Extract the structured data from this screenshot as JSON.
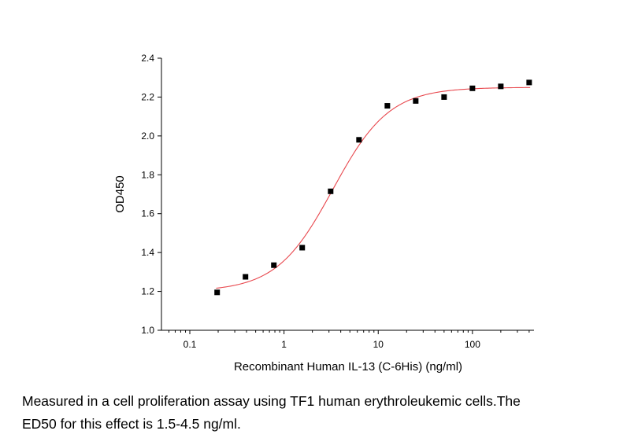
{
  "chart_data": {
    "type": "scatter",
    "x_scale": "log",
    "xlabel": "Recombinant Human IL-13 (C-6His) (ng/ml)",
    "ylabel": "OD450",
    "xlim": [
      0.05,
      450
    ],
    "ylim": [
      1.0,
      2.4
    ],
    "x_ticks": [
      "0.1",
      "1",
      "10",
      "100"
    ],
    "y_ticks": [
      "1.0",
      "1.2",
      "1.4",
      "1.6",
      "1.8",
      "2.0",
      "2.2",
      "2.4"
    ],
    "series": [
      {
        "marker": "square",
        "color": "#000000",
        "x": [
          0.195,
          0.39,
          0.78,
          1.56,
          3.125,
          6.25,
          12.5,
          25,
          50,
          100,
          200,
          400
        ],
        "y": [
          1.195,
          1.275,
          1.335,
          1.425,
          1.715,
          1.98,
          2.155,
          2.18,
          2.2,
          2.245,
          2.255,
          2.275
        ]
      }
    ],
    "fit_curve": {
      "type": "4PL",
      "color": "#e8474d",
      "bottom": 1.2,
      "top": 2.25,
      "ec50": 3.3,
      "hill": 1.45
    },
    "grid": false,
    "legend": "none"
  },
  "caption": {
    "line1": "Measured in a cell proliferation assay using TF1 human erythroleukemic cells.The",
    "line2": "ED50 for this effect is 1.5-4.5 ng/ml."
  }
}
